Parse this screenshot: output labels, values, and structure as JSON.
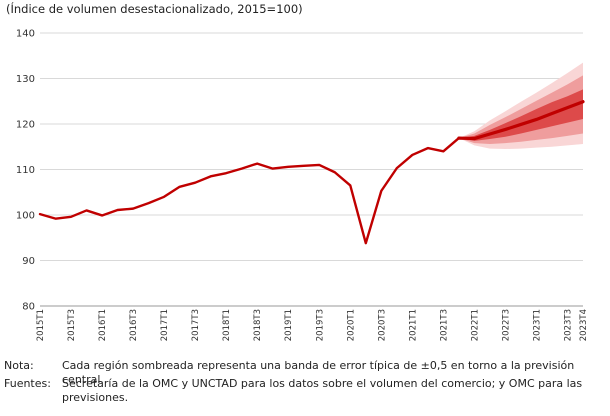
{
  "chart_data": {
    "type": "line",
    "title": "",
    "subtitle": "(Índice de volumen desestacionalizado, 2015=100)",
    "xlabel": "",
    "ylabel": "",
    "ylim": [
      80,
      140
    ],
    "yticks": [
      80,
      90,
      100,
      110,
      120,
      130,
      140
    ],
    "grid": "horizontal",
    "series_color": "#c00000",
    "band_colors": [
      "#f9d6d6",
      "#ef9d9d",
      "#dd4a4a"
    ],
    "x": [
      "2015T1",
      "2015T2",
      "2015T3",
      "2015T4",
      "2016T1",
      "2016T2",
      "2016T3",
      "2016T4",
      "2017T1",
      "2017T2",
      "2017T3",
      "2017T4",
      "2018T1",
      "2018T2",
      "2018T3",
      "2018T4",
      "2019T1",
      "2019T2",
      "2019T3",
      "2019T4",
      "2020T1",
      "2020T2",
      "2020T3",
      "2020T4",
      "2021T1",
      "2021T2",
      "2021T3",
      "2021T4",
      "2022T1",
      "2022T2",
      "2022T3",
      "2022T4",
      "2023T1",
      "2023T2",
      "2023T3",
      "2023T4"
    ],
    "x_tick_labels": [
      "2015T1",
      "2015T3",
      "2016T1",
      "2016T3",
      "2017T1",
      "2017T3",
      "2018T1",
      "2018T3",
      "2019T1",
      "2019T3",
      "2020T1",
      "2020T3",
      "2021T1",
      "2021T3",
      "2022T1",
      "2022T3",
      "2023T1",
      "2023T3",
      "2023T4"
    ],
    "series": [
      {
        "name": "",
        "kind": "historical",
        "values": [
          100.2,
          99.2,
          99.6,
          101.0,
          99.9,
          101.1,
          101.4,
          102.6,
          104.0,
          106.2,
          107.1,
          108.5,
          109.2,
          110.2,
          111.3,
          110.2,
          110.6,
          110.8,
          111.0,
          109.4,
          106.5,
          93.8,
          105.3,
          110.3,
          113.2,
          114.7,
          114.0,
          116.9,
          null,
          null,
          null,
          null,
          null,
          null,
          null,
          null
        ]
      },
      {
        "name": "",
        "kind": "forecast",
        "values": [
          null,
          null,
          null,
          null,
          null,
          null,
          null,
          null,
          null,
          null,
          null,
          null,
          null,
          null,
          null,
          null,
          null,
          null,
          null,
          null,
          null,
          null,
          null,
          null,
          null,
          null,
          null,
          116.9,
          116.8,
          117.8,
          118.8,
          119.9,
          121.0,
          122.3,
          123.6,
          124.9
        ]
      }
    ],
    "forecast_bands": {
      "start_index": 27,
      "outer_low": [
        116.9,
        115.3,
        114.6,
        114.5,
        114.6,
        114.8,
        115.0,
        115.3,
        115.6
      ],
      "outer_high": [
        116.9,
        118.4,
        120.8,
        122.8,
        124.9,
        126.9,
        129.0,
        131.2,
        133.5
      ],
      "mid_low": [
        116.9,
        115.8,
        115.6,
        115.8,
        116.1,
        116.5,
        116.9,
        117.4,
        117.9
      ],
      "mid_high": [
        116.9,
        117.9,
        119.8,
        121.5,
        123.3,
        125.1,
        126.9,
        128.7,
        130.7
      ],
      "inner_low": [
        116.9,
        116.3,
        116.7,
        117.2,
        117.9,
        118.7,
        119.5,
        120.3,
        121.1
      ],
      "inner_high": [
        116.9,
        117.4,
        118.7,
        120.2,
        121.7,
        123.3,
        124.8,
        126.1,
        127.6
      ]
    }
  },
  "notes": {
    "note_label": "Nota:",
    "note_text": "Cada región sombreada representa una banda de error típica de ±0,5 en torno a la previsión central.",
    "sources_label": "Fuentes:",
    "sources_text": "Secretaría de la OMC y UNCTAD para los datos sobre el volumen del comercio; y OMC para las previsiones."
  }
}
